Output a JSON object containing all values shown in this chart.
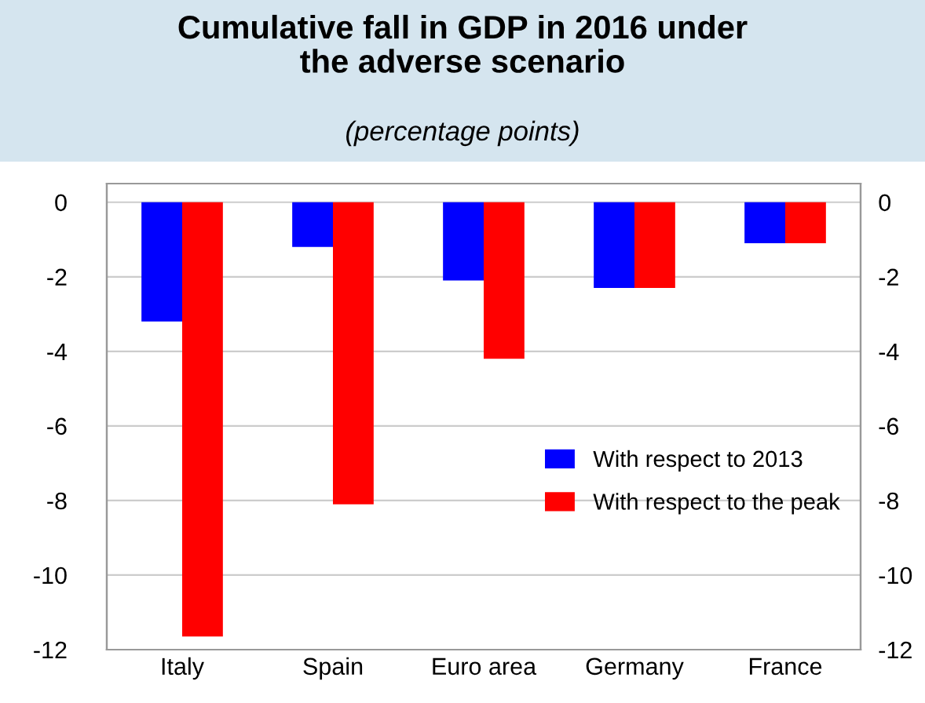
{
  "chart_data": {
    "type": "bar",
    "title": "Cumulative fall in GDP in 2016 under\nthe adverse scenario",
    "subtitle": "(percentage points)",
    "categories": [
      "Italy",
      "Spain",
      "Euro area",
      "Germany",
      "France"
    ],
    "series": [
      {
        "name": "With respect to 2013",
        "color": "#0000ff",
        "values": [
          -3.2,
          -1.2,
          -2.1,
          -2.3,
          -1.1
        ]
      },
      {
        "name": "With respect to the peak",
        "color": "#ff0000",
        "values": [
          -11.65,
          -8.1,
          -4.2,
          -2.3,
          -1.1
        ]
      }
    ],
    "ylim": [
      -12,
      0.5
    ],
    "yticks": [
      -12,
      -10,
      -8,
      -6,
      -4,
      -2,
      0
    ],
    "y2lim": [
      -12,
      0.5
    ],
    "y2ticks": [
      -12,
      -10,
      -8,
      -6,
      -4,
      -2,
      0
    ],
    "grid": "y",
    "legend": "right"
  }
}
